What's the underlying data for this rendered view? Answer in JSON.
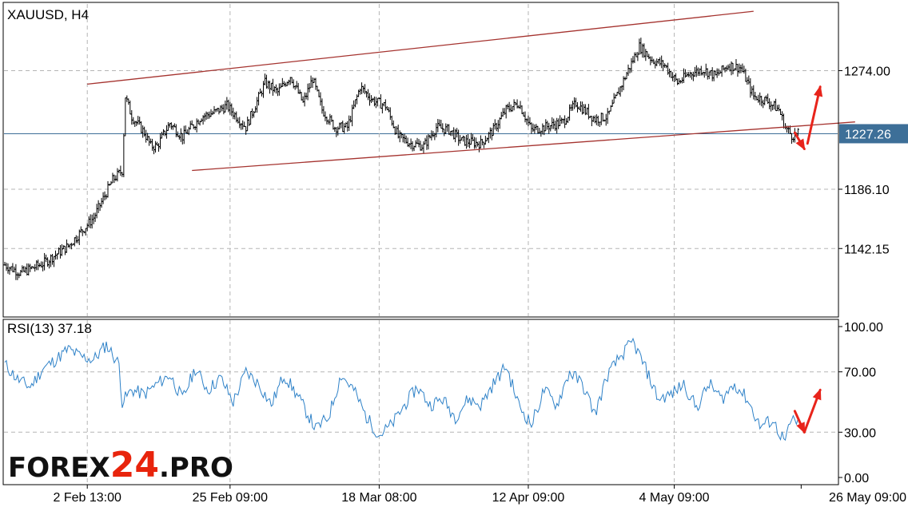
{
  "chart_data": [
    {
      "type": "candlestick",
      "title": "XAUUSD, H4",
      "yticks": [
        "1274.00",
        "1186.10",
        "1142.15"
      ],
      "ylim": [
        1092,
        1324
      ],
      "xticks": [
        "2 Feb 13:00",
        "25 Feb 09:00",
        "18 Mar 08:00",
        "12 Apr 09:00",
        "4 May 09:00",
        "26 May 09:00"
      ],
      "grid": true,
      "current_price": {
        "label": "1227.26",
        "value": 1227.26,
        "color": "#3d6f98"
      },
      "series": [
        {
          "kind": "ohlc-bars",
          "color": "#000000",
          "close_path": [
            [
              0,
              1130
            ],
            [
              5,
              1124
            ],
            [
              12,
              1131
            ],
            [
              20,
              1144
            ],
            [
              28,
              1165
            ],
            [
              34,
              1193
            ],
            [
              37,
              1200
            ],
            [
              38,
              1255
            ],
            [
              40,
              1240
            ],
            [
              44,
              1228
            ],
            [
              46,
              1218
            ],
            [
              48,
              1218
            ],
            [
              52,
              1235
            ],
            [
              56,
              1225
            ],
            [
              62,
              1240
            ],
            [
              66,
              1243
            ],
            [
              70,
              1248
            ],
            [
              76,
              1232
            ],
            [
              82,
              1265
            ],
            [
              86,
              1258
            ],
            [
              90,
              1270
            ],
            [
              94,
              1250
            ],
            [
              97,
              1268
            ],
            [
              100,
              1245
            ],
            [
              104,
              1232
            ],
            [
              108,
              1232
            ],
            [
              112,
              1262
            ],
            [
              116,
              1252
            ],
            [
              120,
              1248
            ],
            [
              124,
              1225
            ],
            [
              128,
              1220
            ],
            [
              132,
              1218
            ],
            [
              136,
              1232
            ],
            [
              140,
              1230
            ],
            [
              144,
              1222
            ],
            [
              150,
              1220
            ],
            [
              154,
              1230
            ],
            [
              158,
              1245
            ],
            [
              162,
              1250
            ],
            [
              166,
              1230
            ],
            [
              170,
              1232
            ],
            [
              176,
              1236
            ],
            [
              180,
              1250
            ],
            [
              182,
              1246
            ],
            [
              186,
              1238
            ],
            [
              190,
              1240
            ],
            [
              196,
              1272
            ],
            [
              200,
              1292
            ],
            [
              204,
              1282
            ],
            [
              208,
              1278
            ],
            [
              212,
              1265
            ],
            [
              216,
              1272
            ],
            [
              220,
              1275
            ],
            [
              224,
              1270
            ],
            [
              228,
              1278
            ],
            [
              232,
              1276
            ],
            [
              236,
              1255
            ],
            [
              240,
              1252
            ],
            [
              244,
              1245
            ],
            [
              246,
              1232
            ],
            [
              248,
              1226
            ],
            [
              250,
              1227
            ]
          ]
        }
      ],
      "channel_lines": [
        {
          "name": "upper-channel",
          "color": "#a5332f",
          "points": [
            [
              26,
              1264
            ],
            [
              236,
              1318
            ]
          ]
        },
        {
          "name": "lower-channel",
          "color": "#a5332f",
          "points": [
            [
              59,
              1200
            ],
            [
              268,
              1236
            ]
          ]
        }
      ],
      "arrows": [
        {
          "name": "down-arrow",
          "color": "#e8241b",
          "from": [
            249,
            1228
          ],
          "to": [
            252,
            1216
          ]
        },
        {
          "name": "up-arrow",
          "color": "#e8241b",
          "from": [
            253,
            1220
          ],
          "to": [
            257,
            1262
          ]
        }
      ]
    },
    {
      "type": "line",
      "title": "RSI(13) 37.18",
      "yticks": [
        "100.00",
        "70.00",
        "30.00",
        "0.00"
      ],
      "ylim": [
        0,
        100
      ],
      "levels": [
        70,
        30
      ],
      "grid": true,
      "series": [
        {
          "name": "RSI(13)",
          "color": "#2f82c8",
          "values": [
            [
              0,
              75
            ],
            [
              4,
              65
            ],
            [
              8,
              60
            ],
            [
              12,
              72
            ],
            [
              16,
              78
            ],
            [
              20,
              85
            ],
            [
              24,
              80
            ],
            [
              28,
              78
            ],
            [
              32,
              88
            ],
            [
              36,
              75
            ],
            [
              37,
              50
            ],
            [
              40,
              58
            ],
            [
              44,
              55
            ],
            [
              48,
              62
            ],
            [
              52,
              68
            ],
            [
              56,
              52
            ],
            [
              60,
              72
            ],
            [
              64,
              58
            ],
            [
              68,
              66
            ],
            [
              72,
              50
            ],
            [
              76,
              70
            ],
            [
              80,
              62
            ],
            [
              84,
              48
            ],
            [
              88,
              68
            ],
            [
              92,
              55
            ],
            [
              96,
              40
            ],
            [
              98,
              32
            ],
            [
              102,
              40
            ],
            [
              106,
              68
            ],
            [
              110,
              58
            ],
            [
              114,
              40
            ],
            [
              118,
              28
            ],
            [
              122,
              35
            ],
            [
              126,
              48
            ],
            [
              130,
              60
            ],
            [
              134,
              48
            ],
            [
              138,
              52
            ],
            [
              142,
              40
            ],
            [
              146,
              52
            ],
            [
              150,
              48
            ],
            [
              154,
              62
            ],
            [
              158,
              74
            ],
            [
              162,
              48
            ],
            [
              166,
              35
            ],
            [
              170,
              58
            ],
            [
              174,
              48
            ],
            [
              178,
              70
            ],
            [
              182,
              62
            ],
            [
              186,
              42
            ],
            [
              190,
              68
            ],
            [
              194,
              80
            ],
            [
              198,
              90
            ],
            [
              202,
              72
            ],
            [
              206,
              52
            ],
            [
              210,
              55
            ],
            [
              214,
              62
            ],
            [
              218,
              46
            ],
            [
              222,
              62
            ],
            [
              226,
              52
            ],
            [
              230,
              62
            ],
            [
              234,
              52
            ],
            [
              238,
              34
            ],
            [
              242,
              38
            ],
            [
              244,
              30
            ],
            [
              246,
              24
            ],
            [
              248,
              38
            ],
            [
              250,
              37
            ]
          ]
        }
      ],
      "arrows": [
        {
          "name": "rsi-down-arrow",
          "color": "#e8241b",
          "from": [
            249,
            44
          ],
          "to": [
            252,
            30
          ]
        },
        {
          "name": "rsi-up-arrow",
          "color": "#e8241b",
          "from": [
            252,
            30
          ],
          "to": [
            257,
            58
          ]
        }
      ]
    }
  ],
  "watermark": {
    "part1": "FOREX",
    "part2": "24",
    "part3": ".PRO"
  }
}
